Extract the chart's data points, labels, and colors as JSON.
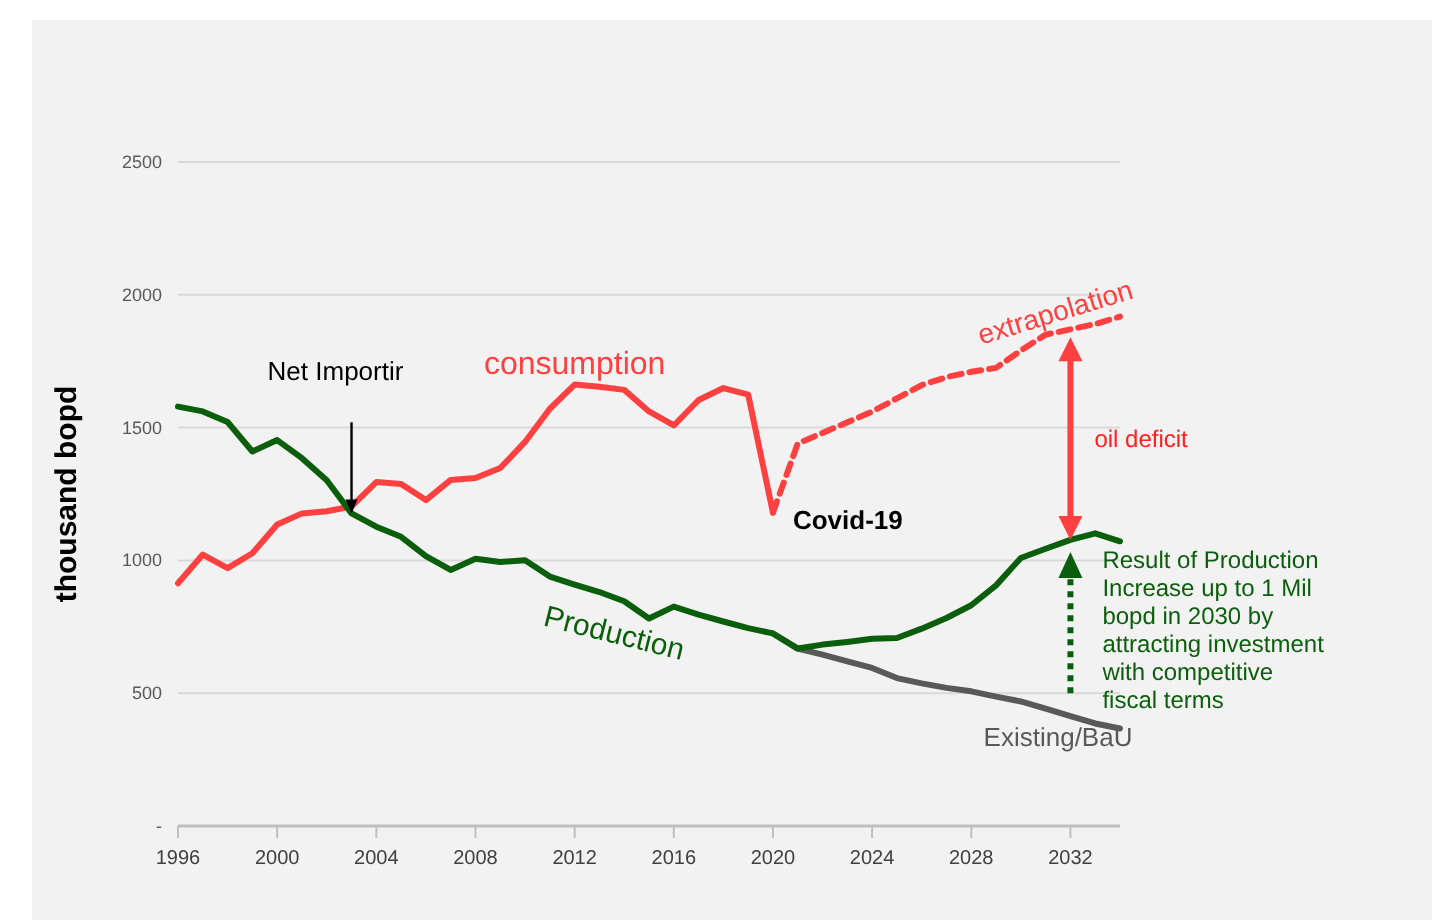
{
  "chart_data": {
    "type": "line",
    "ylabel": "thousand bopd",
    "xlim": [
      1996,
      2034
    ],
    "xticks": [
      1996,
      2000,
      2004,
      2008,
      2012,
      2016,
      2020,
      2024,
      2028,
      2032
    ],
    "ylim": [
      0,
      2500
    ],
    "yticks": [
      {
        "value": 0,
        "label": "-"
      },
      500,
      1000,
      1500,
      2000,
      2500
    ],
    "grid": "y",
    "marker": "none",
    "series": [
      {
        "name": "consumption",
        "color": "#ff4040",
        "line_style": "solid",
        "x": [
          1996,
          1997,
          1998,
          1999,
          2000,
          2001,
          2002,
          2003,
          2004,
          2005,
          2006,
          2007,
          2008,
          2009,
          2010,
          2011,
          2012,
          2013,
          2014,
          2015,
          2016,
          2017,
          2018,
          2019,
          2020
        ],
        "values": [
          914,
          1022,
          971,
          1027,
          1135,
          1177,
          1185,
          1203,
          1295,
          1288,
          1227,
          1303,
          1310,
          1348,
          1446,
          1571,
          1662,
          1654,
          1642,
          1561,
          1508,
          1604,
          1649,
          1624,
          1180
        ]
      },
      {
        "name": "extrapolation",
        "color": "#ff4040",
        "line_style": "dashed",
        "x": [
          2020,
          2021,
          2022,
          2023,
          2024,
          2025,
          2026,
          2027,
          2028,
          2029,
          2030,
          2031,
          2032,
          2033,
          2034
        ],
        "values": [
          1180,
          1440,
          1480,
          1520,
          1560,
          1610,
          1660,
          1690,
          1710,
          1725,
          1790,
          1850,
          1870,
          1890,
          1918
        ]
      },
      {
        "name": "Existing/BaU",
        "color": "#595959",
        "line_style": "solid",
        "x": [
          2020,
          2021,
          2022,
          2023,
          2024,
          2025,
          2026,
          2027,
          2028,
          2029,
          2030,
          2031,
          2032,
          2033,
          2034
        ],
        "values": [
          725,
          668,
          645,
          620,
          595,
          557,
          537,
          520,
          507,
          487,
          469,
          442,
          414,
          386,
          367
        ]
      },
      {
        "name": "Production",
        "color": "#0b5e0b",
        "line_style": "solid",
        "x": [
          1996,
          1997,
          1998,
          1999,
          2000,
          2001,
          2002,
          2003,
          2004,
          2005,
          2006,
          2007,
          2008,
          2009,
          2010,
          2011,
          2012,
          2013,
          2014,
          2015,
          2016,
          2017,
          2018,
          2019,
          2020,
          2021,
          2022,
          2023,
          2024,
          2025,
          2026,
          2027,
          2028,
          2029,
          2030,
          2031,
          2032,
          2033,
          2034
        ],
        "values": [
          1579,
          1561,
          1521,
          1410,
          1453,
          1385,
          1302,
          1177,
          1127,
          1089,
          1016,
          964,
          1006,
          994,
          1001,
          939,
          909,
          881,
          846,
          781,
          826,
          796,
          770,
          745,
          725,
          668,
          683,
          693,
          705,
          708,
          743,
          783,
          831,
          906,
          1009,
          1044,
          1077,
          1102,
          1072
        ]
      }
    ],
    "annotations": [
      "Net Importir",
      {
        "text": "Covid-19",
        "x": 2020,
        "y": 1180
      },
      "oil deficit",
      {
        "text": "Result of Production Increase up to 1 Mil bopd in 2030 by attracting investment with competitive fiscal terms",
        "x": 2032,
        "y": 1077
      }
    ]
  }
}
